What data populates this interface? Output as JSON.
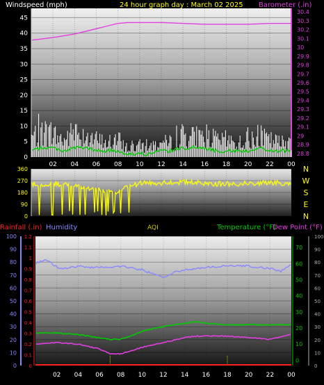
{
  "colors": {
    "wind_gust": "#ffffff",
    "wind_avg": "#00cc00",
    "barometer": "#e040e0",
    "direction": "#ffff00",
    "humidity": "#8888ff",
    "temperature": "#00cc00",
    "dew_point": "#e040e0",
    "rainfall": "#ff2020",
    "aqi": "#cccc00"
  },
  "header": {
    "wind_label": "Windspeed (mph)",
    "title": "24 hour graph day : March 02 2025",
    "baro_label": "Barometer (.in)"
  },
  "lower_header": {
    "rain_label": "Rainfall (.in)",
    "humidity_label": "Humidity",
    "aqi_label": "AQI",
    "temp_label": "Temperature (°F)",
    "dew_label": "Dew Point (°F)"
  },
  "compass": [
    "N",
    "W",
    "S",
    "E",
    "N"
  ],
  "chart_data": [
    {
      "type": "line",
      "panel": "wind",
      "x_ticks": [
        "02",
        "04",
        "06",
        "08",
        "10",
        "12",
        "14",
        "16",
        "18",
        "20",
        "22",
        "00"
      ],
      "y_left_ticks": [
        "0",
        "5",
        "10",
        "15",
        "20",
        "25",
        "30",
        "35",
        "40",
        "45"
      ],
      "y_left_range": [
        0,
        48
      ],
      "y_right_ticks": [
        "28.8",
        "28.9",
        "29",
        "29.1",
        "29.2",
        "29.3",
        "29.4",
        "29.5",
        "29.6",
        "29.7",
        "29.8",
        "29.9",
        "30",
        "30.1",
        "30.2",
        "30.3",
        "30.4"
      ],
      "y_right_range": [
        28.76,
        30.44
      ],
      "series": [
        {
          "name": "Windspeed (mph)",
          "role": "gust",
          "x": [
            0,
            1,
            2,
            3,
            4,
            5,
            6,
            7,
            8,
            9,
            10,
            11,
            12,
            13,
            14,
            15,
            16,
            17,
            18,
            19,
            20,
            21,
            22,
            23,
            24
          ],
          "values": [
            7,
            9,
            8,
            6,
            9,
            8,
            6,
            5,
            6,
            3,
            4,
            4,
            5,
            5,
            8,
            7,
            8,
            6,
            6,
            5,
            6,
            7,
            6,
            5,
            6
          ]
        },
        {
          "name": "Windspeed (mph)",
          "role": "average",
          "x": [
            0,
            1,
            2,
            3,
            4,
            5,
            6,
            7,
            8,
            9,
            10,
            11,
            12,
            13,
            14,
            15,
            16,
            17,
            18,
            19,
            20,
            21,
            22,
            23,
            24
          ],
          "values": [
            2,
            3,
            3,
            2,
            3,
            3,
            2,
            2,
            2,
            1,
            1,
            1,
            2,
            2,
            3,
            3,
            3,
            2,
            2,
            2,
            2,
            3,
            2,
            2,
            2
          ]
        },
        {
          "name": "Barometer (.in)",
          "x": [
            0,
            2,
            4,
            6,
            8,
            9,
            10,
            12,
            14,
            16,
            18,
            20,
            22,
            24
          ],
          "values": [
            30.08,
            30.11,
            30.15,
            30.21,
            30.27,
            30.28,
            30.28,
            30.28,
            30.27,
            30.26,
            30.26,
            30.26,
            30.27,
            30.27
          ]
        }
      ]
    },
    {
      "type": "line",
      "panel": "wind_direction",
      "x_ticks": [
        "02",
        "04",
        "06",
        "08",
        "10",
        "12",
        "14",
        "16",
        "18",
        "20",
        "22",
        "00"
      ],
      "y_ticks": [
        "0",
        "90",
        "180",
        "270",
        "360"
      ],
      "y_range": [
        0,
        360
      ],
      "series": [
        {
          "name": "Wind direction",
          "x": [
            0,
            2,
            4,
            6,
            8,
            9,
            10,
            12,
            14,
            16,
            18,
            20,
            22,
            24
          ],
          "values": [
            240,
            250,
            230,
            200,
            180,
            230,
            250,
            255,
            260,
            250,
            245,
            250,
            255,
            250
          ]
        }
      ]
    },
    {
      "type": "line",
      "panel": "temperature_humidity",
      "x_ticks": [
        "02",
        "04",
        "06",
        "08",
        "10",
        "12",
        "14",
        "16",
        "18",
        "20",
        "22",
        "00"
      ],
      "y_humidity_ticks": [
        "0",
        "10",
        "20",
        "30",
        "40",
        "50",
        "60",
        "70",
        "80",
        "90",
        "100"
      ],
      "y_humidity_range": [
        0,
        100
      ],
      "y_rain_ticks": [
        "0",
        "0.1",
        "0.2",
        "0.3",
        "0.4",
        "0.5",
        "0.6",
        "0.7",
        "0.8",
        "0.9",
        "1",
        "1.1",
        "1.2"
      ],
      "y_rain_range": [
        0,
        1.2
      ],
      "y_temp_ticks": [
        "0",
        "10",
        "20",
        "30",
        "40",
        "50",
        "60",
        "70"
      ],
      "y_temp_range": [
        -3.3,
        77
      ],
      "y_far_right_ticks": [
        "0",
        "10",
        "20",
        "30",
        "40",
        "50",
        "60",
        "70",
        "80",
        "90",
        "100"
      ],
      "series": [
        {
          "name": "Humidity",
          "x": [
            0,
            1,
            2,
            3,
            4,
            5,
            6,
            7,
            8,
            10,
            12,
            13,
            14,
            16,
            18,
            20,
            22,
            23,
            24
          ],
          "values": [
            79,
            82,
            76,
            75,
            77,
            76,
            76,
            76,
            77,
            74,
            68,
            72,
            74,
            76,
            77,
            77,
            75,
            73,
            78
          ]
        },
        {
          "name": "Temperature (°F)",
          "x": [
            0,
            2,
            4,
            6,
            7,
            8,
            9,
            10,
            12,
            14,
            15,
            16,
            18,
            20,
            22,
            24
          ],
          "values": [
            17,
            17,
            16,
            14,
            13,
            13,
            15,
            18,
            21,
            23,
            24,
            23,
            22,
            22,
            22,
            22
          ]
        },
        {
          "name": "Dew Point (°F)",
          "x": [
            0,
            2,
            4,
            6,
            7,
            8,
            9,
            10,
            12,
            14,
            15,
            16,
            18,
            20,
            22,
            24
          ],
          "values": [
            10,
            11,
            10,
            7,
            4,
            4,
            6,
            8,
            11,
            14,
            15,
            15,
            15,
            14,
            13,
            16
          ]
        },
        {
          "name": "Rainfall (.in)",
          "x": [
            0,
            24
          ],
          "values": [
            0,
            0
          ]
        }
      ]
    }
  ]
}
